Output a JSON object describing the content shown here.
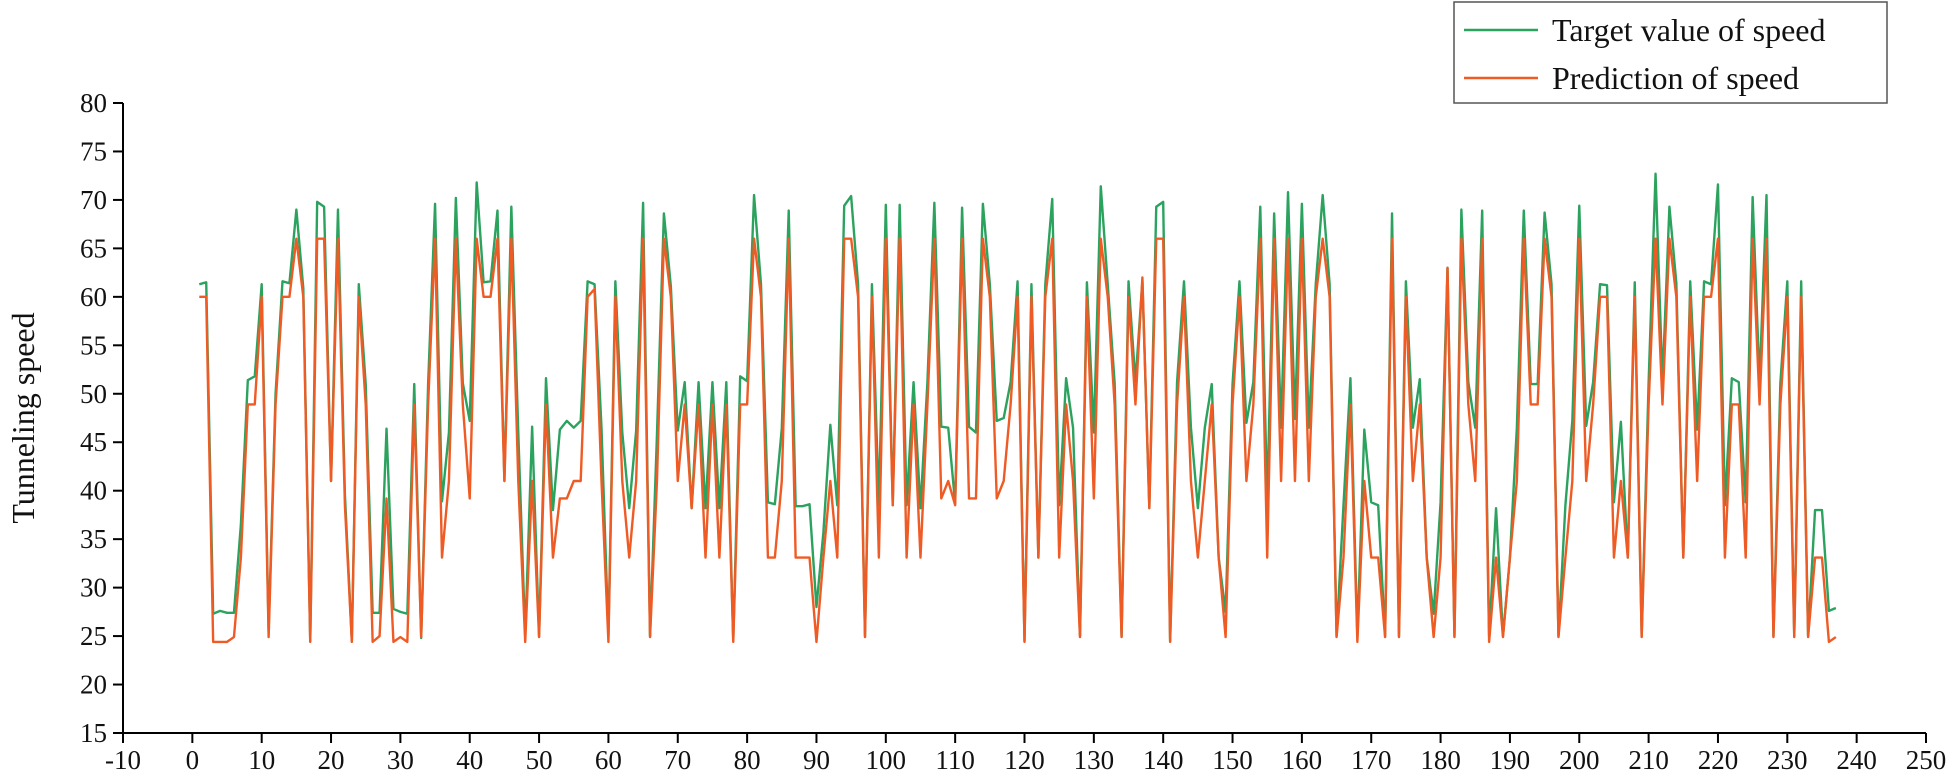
{
  "chart_data": {
    "type": "line",
    "title": "",
    "xlabel": "",
    "ylabel": "Tunneling speed",
    "xlim": [
      -10,
      250
    ],
    "ylim": [
      15,
      80
    ],
    "x_ticks": [
      -10,
      0,
      10,
      20,
      30,
      40,
      50,
      60,
      70,
      80,
      90,
      100,
      110,
      120,
      130,
      140,
      150,
      160,
      170,
      180,
      190,
      200,
      210,
      220,
      230,
      240,
      250
    ],
    "y_ticks": [
      15,
      20,
      25,
      30,
      35,
      40,
      45,
      50,
      55,
      60,
      65,
      70,
      75,
      80
    ],
    "grid": false,
    "legend": "top-right",
    "x_start": 1,
    "series": [
      {
        "name": "Target value of speed",
        "color": "#2ca25f",
        "values": [
          61.3,
          61.5,
          27.3,
          27.6,
          27.4,
          27.4,
          36.5,
          51.4,
          51.8,
          61.3,
          25.5,
          50,
          61.6,
          61.4,
          69,
          60.9,
          24.5,
          69.8,
          69.3,
          41,
          69,
          39.6,
          24.5,
          61.3,
          51,
          27.4,
          27.4,
          46.4,
          27.8,
          27.5,
          27.3,
          51,
          24.8,
          51,
          69.6,
          38.9,
          46,
          70.2,
          51.1,
          47.2,
          71.8,
          61.5,
          61.6,
          68.9,
          41,
          69.3,
          46,
          25,
          46.6,
          25,
          51.6,
          38,
          46.3,
          47.2,
          46.5,
          47.2,
          61.6,
          61.3,
          46.5,
          25,
          61.6,
          46,
          38.2,
          46.2,
          69.7,
          25,
          45.8,
          68.6,
          61.1,
          46.2,
          51.2,
          38.2,
          51.2,
          38.2,
          51.2,
          38.2,
          51.2,
          24.5,
          51.8,
          51.3,
          70.5,
          61.3,
          38.8,
          38.6,
          46.4,
          68.9,
          38.4,
          38.4,
          38.6,
          28,
          35.7,
          46.8,
          38.5,
          69.4,
          70.4,
          61.3,
          25,
          61.3,
          38.5,
          69.5,
          38.5,
          69.5,
          38.5,
          51.2,
          38.2,
          51.2,
          69.7,
          46.6,
          46.5,
          38.7,
          69.2,
          46.6,
          46,
          69.6,
          61.3,
          47.2,
          47.5,
          51.2,
          61.6,
          24.5,
          61.3,
          33.1,
          61.3,
          70.1,
          38.5,
          51.6,
          46.5,
          25,
          61.5,
          46,
          71.4,
          61.3,
          51.1,
          25,
          61.6,
          51.2,
          61.6,
          38.2,
          69.3,
          69.8,
          24.5,
          51.2,
          61.6,
          46.5,
          38.2,
          46.5,
          51,
          33.1,
          27.5,
          51,
          61.6,
          47,
          51.2,
          69.3,
          38.8,
          68.6,
          46.5,
          70.8,
          47.4,
          69.6,
          46.5,
          61.3,
          70.5,
          61.3,
          25,
          38.5,
          51.6,
          25,
          46.3,
          38.8,
          38.5,
          25,
          68.6,
          25,
          61.6,
          46.5,
          51.5,
          33.1,
          27.3,
          38.8,
          63,
          25,
          69,
          51.2,
          46.5,
          68.9,
          25,
          38.2,
          25,
          33.1,
          46.5,
          68.9,
          51,
          51,
          68.7,
          61.3,
          25,
          38.5,
          47.2,
          69.4,
          46.7,
          51.2,
          61.3,
          61.2,
          38.8,
          47.1,
          33.1,
          61.5,
          25,
          51.2,
          72.7,
          51.2,
          69.3,
          61.4,
          33.1,
          61.6,
          46.3,
          61.6,
          61.3,
          71.6,
          38.5,
          51.6,
          51.2,
          38.8,
          70.3,
          51.2,
          70.5,
          25,
          51.1,
          61.6,
          25,
          61.6,
          25,
          38,
          38,
          27.6,
          27.9
        ]
      },
      {
        "name": "Prediction of speed",
        "color": "#ef5b25",
        "values": [
          60,
          60,
          24.4,
          24.4,
          24.4,
          24.9,
          33.1,
          48.9,
          48.9,
          60,
          24.9,
          48.9,
          60,
          60,
          66,
          60,
          24.4,
          66,
          66,
          41,
          66,
          38.5,
          24.4,
          60,
          48.9,
          24.4,
          25,
          39.2,
          24.4,
          24.9,
          24.4,
          48.9,
          24.9,
          48.9,
          66,
          33.1,
          41,
          66,
          48.9,
          39.2,
          66,
          60,
          60,
          66,
          41,
          66,
          41,
          24.4,
          41,
          24.9,
          48.9,
          33.1,
          39.2,
          39.2,
          41,
          41,
          60,
          60.8,
          41,
          24.4,
          60,
          41,
          33.1,
          41,
          66,
          24.9,
          41,
          66,
          60,
          41,
          48.9,
          38.2,
          48.9,
          33.1,
          48.9,
          33.1,
          48.9,
          24.4,
          48.9,
          48.9,
          66,
          60,
          33.1,
          33.1,
          41,
          66,
          33.1,
          33.1,
          33.1,
          24.4,
          33.1,
          41,
          33.1,
          66,
          66,
          60,
          24.9,
          60,
          33.1,
          66,
          38.5,
          66,
          33.1,
          48.9,
          33.1,
          48.9,
          66,
          39.2,
          41,
          38.5,
          66,
          39.2,
          39.2,
          66,
          60,
          39.2,
          41,
          48.9,
          60,
          24.4,
          60,
          33.1,
          60,
          66,
          33.1,
          48.9,
          41,
          24.9,
          60,
          39.2,
          66,
          60,
          48.9,
          24.9,
          60,
          48.9,
          62,
          38.2,
          66,
          66,
          24.4,
          48.9,
          60,
          41,
          33.1,
          41,
          48.9,
          33.1,
          24.9,
          48.9,
          60,
          41,
          48.9,
          66,
          33.1,
          66,
          41,
          66,
          41,
          66,
          41,
          60,
          66,
          60,
          24.9,
          33.1,
          48.9,
          24.4,
          41,
          33.1,
          33.1,
          24.9,
          66,
          24.9,
          60,
          41,
          48.9,
          33.1,
          24.9,
          33.1,
          63,
          24.9,
          66,
          48.9,
          41,
          66,
          24.4,
          33.1,
          24.9,
          33.1,
          41,
          66,
          48.9,
          48.9,
          66,
          60,
          24.9,
          33.1,
          41,
          66,
          41,
          48.9,
          60,
          60,
          33.1,
          41,
          33.1,
          60,
          24.9,
          48.9,
          66,
          48.9,
          66,
          60,
          33.1,
          60,
          41,
          60,
          60,
          66,
          33.1,
          48.9,
          48.9,
          33.1,
          66,
          48.9,
          66,
          24.9,
          48.9,
          60,
          24.9,
          60,
          24.9,
          33.1,
          33.1,
          24.4,
          24.9
        ]
      }
    ]
  }
}
